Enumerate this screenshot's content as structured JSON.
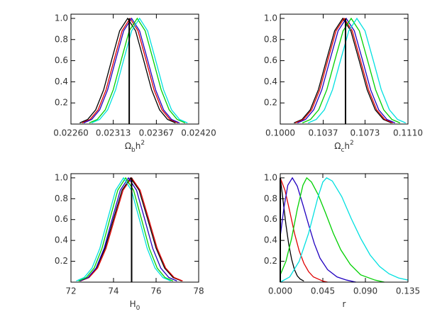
{
  "chart_data": [
    {
      "type": "line",
      "xlim": [
        0.0226,
        0.0242
      ],
      "ylim": [
        0,
        1.04
      ],
      "xticks": [
        {
          "value": 0.0226,
          "label": "0.02260"
        },
        0.02313,
        0.02367,
        {
          "value": 0.0242,
          "label": "0.02420"
        }
      ],
      "yticks": [
        0.2,
        0.4,
        0.6,
        0.8,
        {
          "value": 1.0,
          "label": "1.0"
        }
      ],
      "xlabel": [
        {
          "text": "Ω"
        },
        {
          "text": "b",
          "shift": "sub"
        },
        {
          "text": "h"
        },
        {
          "text": "2",
          "shift": "sup"
        }
      ],
      "vline": {
        "x": 0.02333,
        "y": [
          0,
          1.0
        ],
        "color": "#000000"
      },
      "series": [
        {
          "color": "#000000",
          "x": [
            0.02271,
            0.02281,
            0.02291,
            0.02301,
            0.02311,
            0.02321,
            0.02331,
            0.02341,
            0.02351,
            0.02361,
            0.02371,
            0.02381,
            0.02391
          ],
          "values": [
            0.011,
            0.044,
            0.135,
            0.325,
            0.607,
            0.882,
            1.0,
            0.882,
            0.607,
            0.325,
            0.135,
            0.044,
            0.011
          ]
        },
        {
          "color": "#e00000",
          "x": [
            0.02274,
            0.02284,
            0.02294,
            0.02304,
            0.02314,
            0.02324,
            0.02334,
            0.02344,
            0.02354,
            0.02364,
            0.02374,
            0.02384,
            0.02394
          ],
          "values": [
            0.011,
            0.044,
            0.135,
            0.325,
            0.607,
            0.882,
            1.0,
            0.882,
            0.607,
            0.325,
            0.135,
            0.044,
            0.011
          ]
        },
        {
          "color": "#2000c0",
          "x": [
            0.02276,
            0.02286,
            0.02296,
            0.02306,
            0.02316,
            0.02326,
            0.02336,
            0.02346,
            0.02356,
            0.02366,
            0.02376,
            0.02386,
            0.02396
          ],
          "values": [
            0.011,
            0.044,
            0.135,
            0.325,
            0.607,
            0.882,
            1.0,
            0.882,
            0.607,
            0.325,
            0.135,
            0.044,
            0.011
          ]
        },
        {
          "color": "#00d000",
          "x": [
            0.02283,
            0.02293,
            0.02303,
            0.02313,
            0.02323,
            0.02333,
            0.02343,
            0.02353,
            0.02363,
            0.02373,
            0.02383,
            0.02393,
            0.02403
          ],
          "values": [
            0.011,
            0.044,
            0.135,
            0.325,
            0.607,
            0.882,
            1.0,
            0.882,
            0.607,
            0.325,
            0.135,
            0.044,
            0.011
          ]
        },
        {
          "color": "#00e0e0",
          "x": [
            0.02286,
            0.02296,
            0.02306,
            0.02316,
            0.02326,
            0.02336,
            0.02346,
            0.02356,
            0.02366,
            0.02376,
            0.02386,
            0.02396,
            0.02406
          ],
          "values": [
            0.011,
            0.044,
            0.135,
            0.325,
            0.607,
            0.882,
            1.0,
            0.882,
            0.607,
            0.325,
            0.135,
            0.044,
            0.011
          ]
        }
      ]
    },
    {
      "type": "line",
      "xlim": [
        0.1,
        0.111
      ],
      "ylim": [
        0,
        1.04
      ],
      "xticks": [
        {
          "value": 0.1,
          "label": "0.1000"
        },
        0.1037,
        0.1073,
        {
          "value": 0.111,
          "label": "0.1110"
        }
      ],
      "yticks": [
        0.2,
        0.4,
        0.6,
        0.8,
        {
          "value": 1.0,
          "label": "1.0"
        }
      ],
      "xlabel": [
        {
          "text": "Ω"
        },
        {
          "text": "c",
          "shift": "sub"
        },
        {
          "text": "h"
        },
        {
          "text": "2",
          "shift": "sup"
        }
      ],
      "vline": {
        "x": 0.10562,
        "y": [
          0,
          1.0
        ],
        "color": "#000000"
      },
      "series": [
        {
          "color": "#000000",
          "x": [
            0.10118,
            0.10188,
            0.10258,
            0.10328,
            0.10398,
            0.10468,
            0.10538,
            0.10608,
            0.10678,
            0.10748,
            0.10818,
            0.10888,
            0.10958
          ],
          "values": [
            0.011,
            0.044,
            0.135,
            0.325,
            0.607,
            0.882,
            1.0,
            0.882,
            0.607,
            0.325,
            0.135,
            0.044,
            0.011
          ]
        },
        {
          "color": "#e00000",
          "x": [
            0.1013,
            0.102,
            0.1027,
            0.1034,
            0.1041,
            0.1048,
            0.1055,
            0.1062,
            0.1069,
            0.1076,
            0.1083,
            0.109,
            0.1097
          ],
          "values": [
            0.011,
            0.044,
            0.135,
            0.325,
            0.607,
            0.882,
            1.0,
            0.882,
            0.607,
            0.325,
            0.135,
            0.044,
            0.011
          ]
        },
        {
          "color": "#2000c0",
          "x": [
            0.10148,
            0.10218,
            0.10288,
            0.10358,
            0.10428,
            0.10498,
            0.10568,
            0.10638,
            0.10708,
            0.10778,
            0.10848,
            0.10918,
            0.10988
          ],
          "values": [
            0.011,
            0.044,
            0.135,
            0.325,
            0.607,
            0.882,
            1.0,
            0.882,
            0.607,
            0.325,
            0.135,
            0.044,
            0.011
          ]
        },
        {
          "color": "#00d000",
          "x": [
            0.10191,
            0.10261,
            0.10331,
            0.10401,
            0.10471,
            0.10541,
            0.10611,
            0.10681,
            0.10751,
            0.10821,
            0.10891,
            0.10961,
            0.11031
          ],
          "values": [
            0.011,
            0.044,
            0.135,
            0.325,
            0.607,
            0.882,
            1.0,
            0.882,
            0.607,
            0.325,
            0.135,
            0.044,
            0.011
          ]
        },
        {
          "color": "#00e0e0",
          "x": [
            0.1024,
            0.1031,
            0.1038,
            0.1045,
            0.1052,
            0.1059,
            0.1066,
            0.1073,
            0.108,
            0.1087,
            0.1094,
            0.1101,
            0.1108
          ],
          "values": [
            0.011,
            0.044,
            0.135,
            0.325,
            0.607,
            0.882,
            1.0,
            0.882,
            0.607,
            0.325,
            0.135,
            0.044,
            0.011
          ]
        }
      ]
    },
    {
      "type": "line",
      "xlim": [
        72,
        78
      ],
      "ylim": [
        0,
        1.04
      ],
      "xticks": [
        72,
        74,
        76,
        78
      ],
      "yticks": [
        0.2,
        0.4,
        0.6,
        0.8,
        {
          "value": 1.0,
          "label": "1.0"
        }
      ],
      "xlabel": [
        {
          "text": "H"
        },
        {
          "text": "0",
          "shift": "sub"
        }
      ],
      "vline": {
        "x": 74.85,
        "y": [
          0,
          1.0
        ],
        "color": "#000000"
      },
      "series": [
        {
          "color": "#000000",
          "x": [
            72.4,
            72.8,
            73.2,
            73.6,
            74.0,
            74.4,
            74.8,
            75.2,
            75.6,
            76.0,
            76.4,
            76.8,
            77.2
          ],
          "values": [
            0.011,
            0.044,
            0.135,
            0.325,
            0.607,
            0.882,
            1.0,
            0.882,
            0.607,
            0.325,
            0.135,
            0.044,
            0.011
          ]
        },
        {
          "color": "#e00000",
          "x": [
            72.45,
            72.85,
            73.25,
            73.65,
            74.05,
            74.45,
            74.85,
            75.25,
            75.65,
            76.05,
            76.45,
            76.85,
            77.25
          ],
          "values": [
            0.011,
            0.044,
            0.135,
            0.325,
            0.607,
            0.882,
            1.0,
            0.882,
            0.607,
            0.325,
            0.135,
            0.044,
            0.011
          ]
        },
        {
          "color": "#2000c0",
          "x": [
            72.42,
            72.8,
            73.18,
            73.56,
            73.94,
            74.32,
            74.7,
            75.08,
            75.46,
            75.84,
            76.22,
            76.6,
            76.98
          ],
          "values": [
            0.011,
            0.044,
            0.135,
            0.325,
            0.607,
            0.882,
            1.0,
            0.882,
            0.607,
            0.325,
            0.135,
            0.044,
            0.011
          ]
        },
        {
          "color": "#00d000",
          "x": [
            72.35,
            72.72,
            73.09,
            73.46,
            73.83,
            74.2,
            74.57,
            74.94,
            75.31,
            75.68,
            76.05,
            76.42,
            76.79
          ],
          "values": [
            0.011,
            0.044,
            0.135,
            0.325,
            0.607,
            0.882,
            1.0,
            0.882,
            0.607,
            0.325,
            0.135,
            0.044,
            0.011
          ]
        },
        {
          "color": "#00e0e0",
          "x": [
            72.25,
            72.62,
            72.99,
            73.36,
            73.73,
            74.1,
            74.47,
            74.84,
            75.21,
            75.58,
            75.95,
            76.32,
            76.69
          ],
          "values": [
            0.011,
            0.044,
            0.135,
            0.325,
            0.607,
            0.882,
            1.0,
            0.882,
            0.607,
            0.325,
            0.135,
            0.044,
            0.011
          ]
        }
      ]
    },
    {
      "type": "line",
      "xlim": [
        0,
        0.135
      ],
      "ylim": [
        0,
        1.04
      ],
      "xticks": [
        {
          "value": 0,
          "label": "0.000"
        },
        0.045,
        {
          "value": 0.09,
          "label": "0.090"
        },
        0.135
      ],
      "yticks": [
        0.2,
        0.4,
        0.6,
        0.8,
        {
          "value": 1.0,
          "label": "1.0"
        }
      ],
      "xlabel": [
        {
          "text": "r"
        }
      ],
      "vline": {
        "x": 0,
        "y": [
          0,
          1.0
        ],
        "color": "#000000"
      },
      "series": [
        {
          "color": "#000000",
          "x": [
            0,
            0.003,
            0.006,
            0.009,
            0.012,
            0.015,
            0.018,
            0.021,
            0.025
          ],
          "values": [
            1.0,
            0.78,
            0.55,
            0.36,
            0.22,
            0.12,
            0.06,
            0.03,
            0.01
          ]
        },
        {
          "color": "#e00000",
          "x": [
            0,
            0.005,
            0.01,
            0.015,
            0.02,
            0.025,
            0.03,
            0.035,
            0.04,
            0.045,
            0.05
          ],
          "values": [
            1.0,
            0.88,
            0.68,
            0.47,
            0.3,
            0.18,
            0.1,
            0.05,
            0.03,
            0.01,
            0
          ]
        },
        {
          "color": "#2000c0",
          "x": [
            0,
            0.004,
            0.008,
            0.0128,
            0.018,
            0.024,
            0.03,
            0.036,
            0.042,
            0.05,
            0.06,
            0.07,
            0.08
          ],
          "values": [
            0.44,
            0.72,
            0.93,
            1.0,
            0.92,
            0.74,
            0.55,
            0.37,
            0.23,
            0.12,
            0.05,
            0.02,
            0
          ]
        },
        {
          "color": "#00d000",
          "x": [
            0,
            0.006,
            0.012,
            0.018,
            0.024,
            0.028,
            0.033,
            0.04,
            0.048,
            0.056,
            0.064,
            0.074,
            0.085,
            0.1,
            0.11
          ],
          "values": [
            0.07,
            0.2,
            0.42,
            0.7,
            0.93,
            1.0,
            0.96,
            0.84,
            0.66,
            0.47,
            0.31,
            0.17,
            0.07,
            0.02,
            0
          ]
        },
        {
          "color": "#00e0e0",
          "x": [
            0,
            0.01,
            0.02,
            0.03,
            0.04,
            0.045,
            0.049,
            0.055,
            0.065,
            0.075,
            0.085,
            0.095,
            0.105,
            0.115,
            0.125,
            0.135
          ],
          "values": [
            0,
            0.05,
            0.2,
            0.47,
            0.82,
            0.96,
            1.0,
            0.97,
            0.82,
            0.61,
            0.42,
            0.26,
            0.15,
            0.08,
            0.04,
            0.02
          ]
        }
      ]
    }
  ]
}
